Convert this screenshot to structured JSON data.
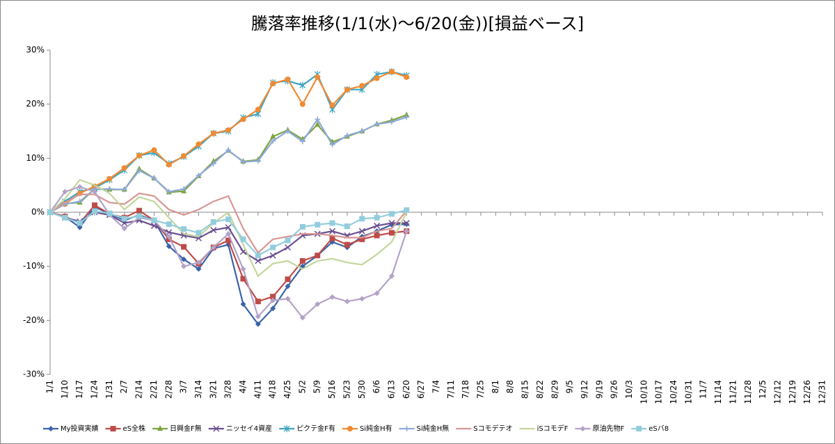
{
  "chart_data": {
    "type": "line",
    "title": "騰落率推移(1/1(水)～6/20(金))[損益ベース]",
    "categories": [
      "1/1",
      "1/10",
      "1/17",
      "1/24",
      "1/31",
      "2/7",
      "2/14",
      "2/21",
      "2/28",
      "3/7",
      "3/14",
      "3/21",
      "3/28",
      "4/4",
      "4/11",
      "4/18",
      "4/25",
      "5/2",
      "5/9",
      "5/16",
      "5/23",
      "5/30",
      "6/6",
      "6/13",
      "6/20",
      "6/27",
      "7/4",
      "7/11",
      "7/18",
      "7/25",
      "8/1",
      "8/8",
      "8/15",
      "8/22",
      "8/29",
      "9/5",
      "9/12",
      "9/19",
      "9/26",
      "10/3",
      "10/10",
      "10/17",
      "10/24",
      "10/31",
      "11/7",
      "11/14",
      "11/21",
      "11/28",
      "12/5",
      "12/12",
      "12/19",
      "12/26",
      "12/31"
    ],
    "ylim": [
      -30,
      30
    ],
    "yticks": [
      {
        "value": -30,
        "label": "-30%"
      },
      {
        "value": -20,
        "label": "-20%"
      },
      {
        "value": -10,
        "label": "-10%"
      },
      {
        "value": 0,
        "label": "0%"
      },
      {
        "value": 10,
        "label": "10%"
      },
      {
        "value": 20,
        "label": "20%"
      },
      {
        "value": 30,
        "label": "30%"
      }
    ],
    "grid": false,
    "legend": "bottom",
    "series": [
      {
        "name": "My投資実績",
        "color": "#3a63a8",
        "marker": "diamond",
        "values": [
          0,
          -0.8,
          -2.8,
          1,
          -0.3,
          -1.5,
          -0.5,
          -1.5,
          -6.3,
          -8.7,
          -10.5,
          -6.7,
          -6,
          -17,
          -20.7,
          -17.8,
          -13.7,
          -10,
          -8,
          -5.5,
          -6.5,
          -4.5,
          -3.5,
          -2.3,
          -2.2,
          null,
          null,
          null,
          null,
          null,
          null,
          null,
          null,
          null,
          null,
          null,
          null,
          null,
          null,
          null,
          null,
          null,
          null,
          null,
          null,
          null,
          null,
          null,
          null,
          null,
          null,
          null,
          null
        ]
      },
      {
        "name": "eS全株",
        "color": "#be4b48",
        "marker": "square",
        "values": [
          0,
          -0.8,
          -2,
          1.3,
          -0.3,
          -1,
          0.3,
          -1.5,
          -5,
          -6.4,
          -9.5,
          -6.5,
          -5.2,
          -12.3,
          -16.5,
          -15.6,
          -12.4,
          -9,
          -8,
          -4.8,
          -6,
          -5,
          -4.3,
          -3.8,
          -3.5,
          null,
          null,
          null,
          null,
          null,
          null,
          null,
          null,
          null,
          null,
          null,
          null,
          null,
          null,
          null,
          null,
          null,
          null,
          null,
          null,
          null,
          null,
          null,
          null,
          null,
          null,
          null,
          null
        ]
      },
      {
        "name": "日興金F無",
        "color": "#7fa33f",
        "marker": "triangle",
        "values": [
          0,
          1.6,
          1.8,
          4.3,
          4.2,
          4.2,
          8,
          6.3,
          3.7,
          3.9,
          6.7,
          9.4,
          11.4,
          9.4,
          9.7,
          14,
          15.2,
          13.5,
          16.2,
          13,
          14,
          15,
          16.3,
          17,
          18,
          null,
          null,
          null,
          null,
          null,
          null,
          null,
          null,
          null,
          null,
          null,
          null,
          null,
          null,
          null,
          null,
          null,
          null,
          null,
          null,
          null,
          null,
          null,
          null,
          null,
          null,
          null,
          null
        ]
      },
      {
        "name": "ニッセイ4資産",
        "color": "#6a4f90",
        "marker": "x",
        "values": [
          0,
          -1,
          -1.7,
          0,
          -0.5,
          -2,
          -1.5,
          -2.5,
          -3.7,
          -4.3,
          -4.8,
          -3.3,
          -2.8,
          -7.3,
          -9,
          -8,
          -6.5,
          -4.3,
          -4,
          -3.5,
          -4.3,
          -3.5,
          -2.5,
          -2,
          -2,
          null,
          null,
          null,
          null,
          null,
          null,
          null,
          null,
          null,
          null,
          null,
          null,
          null,
          null,
          null,
          null,
          null,
          null,
          null,
          null,
          null,
          null,
          null,
          null,
          null,
          null,
          null,
          null
        ]
      },
      {
        "name": "ピクテ金F有",
        "color": "#3fa5c0",
        "marker": "star",
        "values": [
          0,
          2,
          3.8,
          4.5,
          6,
          7.8,
          10.5,
          11,
          9,
          10.3,
          12.2,
          14.6,
          15,
          17.5,
          18.2,
          24,
          24.3,
          23.5,
          25.5,
          19,
          22.7,
          22.7,
          25.5,
          26,
          25.3,
          null,
          null,
          null,
          null,
          null,
          null,
          null,
          null,
          null,
          null,
          null,
          null,
          null,
          null,
          null,
          null,
          null,
          null,
          null,
          null,
          null,
          null,
          null,
          null,
          null,
          null,
          null,
          null
        ]
      },
      {
        "name": "Si純金H有",
        "color": "#f08a33",
        "marker": "circle",
        "values": [
          0,
          1.5,
          3.5,
          4.8,
          6.2,
          8.2,
          10.5,
          11.5,
          8.8,
          10.4,
          12.6,
          14.6,
          15.2,
          17.2,
          19,
          23.8,
          24.6,
          20,
          25,
          19.8,
          22.7,
          23.4,
          24.8,
          26,
          25,
          null,
          null,
          null,
          null,
          null,
          null,
          null,
          null,
          null,
          null,
          null,
          null,
          null,
          null,
          null,
          null,
          null,
          null,
          null,
          null,
          null,
          null,
          null,
          null,
          null,
          null,
          null,
          null
        ]
      },
      {
        "name": "Si純金H無",
        "color": "#8eaadb",
        "marker": "plus",
        "values": [
          0,
          1.5,
          2,
          4.3,
          4.3,
          4.2,
          7.7,
          6.3,
          3.8,
          4.3,
          6.8,
          9,
          11.5,
          9.3,
          9.5,
          13.2,
          15,
          13.1,
          17.2,
          12.5,
          14.2,
          15,
          16.3,
          16.7,
          17.6,
          null,
          null,
          null,
          null,
          null,
          null,
          null,
          null,
          null,
          null,
          null,
          null,
          null,
          null,
          null,
          null,
          null,
          null,
          null,
          null,
          null,
          null,
          null,
          null,
          null,
          null,
          null,
          null
        ]
      },
      {
        "name": "Sコモデテオ",
        "color": "#d99694",
        "marker": "none",
        "values": [
          0,
          1.8,
          3.3,
          3.3,
          1.8,
          1.5,
          3.5,
          3,
          0.5,
          -0.5,
          0.5,
          2,
          3,
          -3,
          -7.5,
          -5,
          -4.5,
          -4,
          -4,
          -4.3,
          -4.7,
          -4.7,
          -3.5,
          -3,
          0.3,
          null,
          null,
          null,
          null,
          null,
          null,
          null,
          null,
          null,
          null,
          null,
          null,
          null,
          null,
          null,
          null,
          null,
          null,
          null,
          null,
          null,
          null,
          null,
          null,
          null,
          null,
          null,
          null
        ]
      },
      {
        "name": "iSコモデF",
        "color": "#c3d69b",
        "marker": "none",
        "values": [
          0,
          2.5,
          6,
          5,
          3.5,
          0.5,
          2.8,
          2,
          -1,
          -4,
          -4.5,
          -2,
          0,
          -6,
          -11.8,
          -9.5,
          -9,
          -10.5,
          -9,
          -8.6,
          -9.3,
          -9.7,
          -7.8,
          -5.5,
          0,
          null,
          null,
          null,
          null,
          null,
          null,
          null,
          null,
          null,
          null,
          null,
          null,
          null,
          null,
          null,
          null,
          null,
          null,
          null,
          null,
          null,
          null,
          null,
          null,
          null,
          null,
          null,
          null
        ]
      },
      {
        "name": "原油先物F",
        "color": "#b3a2c7",
        "marker": "diamond",
        "values": [
          0,
          3.8,
          4.7,
          3.8,
          -0.5,
          -3,
          -1,
          -1.5,
          -4.5,
          -10,
          -9.3,
          -6.5,
          -4,
          -10.5,
          -19.3,
          -16.3,
          -16,
          -19.5,
          -17,
          -15.7,
          -16.5,
          -16,
          -15,
          -11.8,
          -3.5,
          null,
          null,
          null,
          null,
          null,
          null,
          null,
          null,
          null,
          null,
          null,
          null,
          null,
          null,
          null,
          null,
          null,
          null,
          null,
          null,
          null,
          null,
          null,
          null,
          null,
          null,
          null,
          null
        ]
      },
      {
        "name": "eSバ8",
        "color": "#93cddd",
        "marker": "square",
        "values": [
          0,
          -1,
          -2,
          0.2,
          -0.2,
          -1.2,
          -0.7,
          -1.5,
          -2.2,
          -3.1,
          -3.8,
          -1.8,
          -1.3,
          -5,
          -8,
          -6.5,
          -5.2,
          -2.7,
          -2.3,
          -2,
          -2.6,
          -1.2,
          -1,
          -0.3,
          0.4,
          null,
          null,
          null,
          null,
          null,
          null,
          null,
          null,
          null,
          null,
          null,
          null,
          null,
          null,
          null,
          null,
          null,
          null,
          null,
          null,
          null,
          null,
          null,
          null,
          null,
          null,
          null,
          null
        ]
      }
    ]
  }
}
